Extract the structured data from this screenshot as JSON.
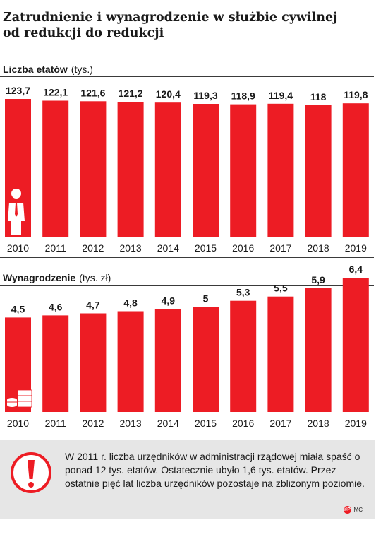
{
  "title_line1": "Zatrudnienie i wynagrodzenie w służbie cywilnej",
  "title_line2": "od redukcji do redukcji",
  "chart_data": [
    {
      "type": "bar",
      "title": "Liczba etatów",
      "unit": "(tys.)",
      "categories": [
        "2010",
        "2011",
        "2012",
        "2013",
        "2014",
        "2015",
        "2016",
        "2017",
        "2018",
        "2019"
      ],
      "values": [
        123.7,
        122.1,
        121.6,
        121.2,
        120.4,
        119.3,
        118.9,
        119.4,
        118,
        119.8
      ],
      "value_labels": [
        "123,7",
        "122,1",
        "121,6",
        "121,2",
        "120,4",
        "119,3",
        "118,9",
        "119,4",
        "118",
        "119,8"
      ],
      "ylim": [
        0,
        123.7
      ],
      "color": "#ed1c24",
      "icon": "person-icon"
    },
    {
      "type": "bar",
      "title": "Wynagrodzenie",
      "unit": "(tys. zł)",
      "categories": [
        "2010",
        "2011",
        "2012",
        "2013",
        "2014",
        "2015",
        "2016",
        "2017",
        "2018",
        "2019"
      ],
      "values": [
        4.5,
        4.6,
        4.7,
        4.8,
        4.9,
        5,
        5.3,
        5.5,
        5.9,
        6.4
      ],
      "value_labels": [
        "4,5",
        "4,6",
        "4,7",
        "4,8",
        "4,9",
        "5",
        "5,3",
        "5,5",
        "5,9",
        "6,4"
      ],
      "ylim": [
        0,
        6.4
      ],
      "color": "#ed1c24",
      "icon": "money-stack-icon"
    }
  ],
  "note": {
    "icon": "exclamation-icon",
    "text": "W 2011 r. liczba urzędników w administracji rządowej miała spaść o ponad 12 tys. etatów. Ostatecznie ubyło 1,6 tys. etatów. Przez ostatnie pięć lat liczba urzędników pozostaje na zbliżonym poziomie."
  },
  "credit": {
    "logo_text": "©P",
    "author": "MC"
  }
}
